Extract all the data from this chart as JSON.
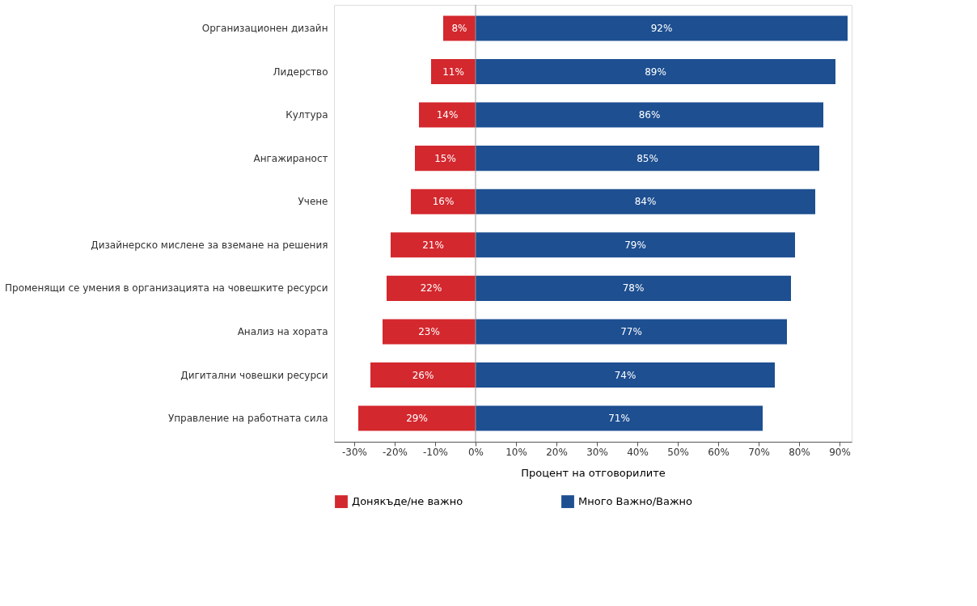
{
  "chart_data": {
    "type": "bar",
    "orientation": "horizontal",
    "categories": [
      "Организационен дизайн",
      "Лидерство",
      "Култура",
      "Ангажираност",
      "Учене",
      "Дизайнерско мислене за вземане на решения",
      "Променящи се умения в организацията на човешките ресурси",
      "Анализ на хората",
      "Дигитални човешки ресурси",
      "Управление на работната сила"
    ],
    "series": [
      {
        "name": "Донякъде/не важно",
        "color": "#d3282e",
        "values": [
          8,
          11,
          14,
          15,
          16,
          21,
          22,
          23,
          26,
          29
        ],
        "base": [
          -8,
          -11,
          -14,
          -15,
          -16,
          -21,
          -22,
          -23,
          -26,
          -29
        ],
        "value_labels": [
          "8%",
          "11%",
          "14%",
          "15%",
          "16%",
          "21%",
          "22%",
          "23%",
          "26%",
          "29%"
        ]
      },
      {
        "name": "Много Важно/Важно",
        "color": "#1d4f91",
        "values": [
          92,
          89,
          86,
          85,
          84,
          79,
          78,
          77,
          74,
          71
        ],
        "value_labels": [
          "92%",
          "89%",
          "86%",
          "85%",
          "84%",
          "79%",
          "78%",
          "77%",
          "74%",
          "71%"
        ]
      }
    ],
    "xlabel": "Процент на отговорилите",
    "xlim": [
      -35,
      93
    ],
    "xticks": [
      {
        "value": -30,
        "label": "-30%"
      },
      {
        "value": -20,
        "label": "-20%"
      },
      {
        "value": -10,
        "label": "-10%"
      },
      {
        "value": 0,
        "label": "0%"
      },
      {
        "value": 10,
        "label": "10%"
      },
      {
        "value": 20,
        "label": "20%"
      },
      {
        "value": 30,
        "label": "30%"
      },
      {
        "value": 40,
        "label": "40%"
      },
      {
        "value": 50,
        "label": "50%"
      },
      {
        "value": 60,
        "label": "60%"
      },
      {
        "value": 70,
        "label": "70%"
      },
      {
        "value": 80,
        "label": "80%"
      },
      {
        "value": 90,
        "label": "90%"
      }
    ],
    "ref_lines": [
      {
        "axis": "x",
        "value": 0,
        "color": "#999999"
      }
    ],
    "grid": false,
    "legend": "bottom left"
  }
}
